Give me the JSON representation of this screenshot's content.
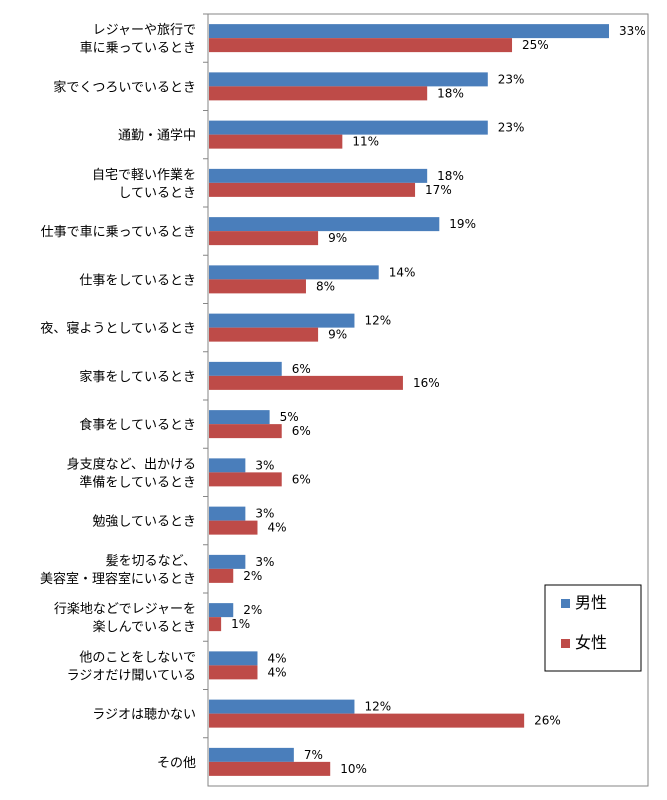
{
  "chart_data": {
    "type": "bar",
    "orientation": "horizontal",
    "categories": [
      [
        "レジャーや旅行で",
        "車に乗っているとき"
      ],
      [
        "家でくつろいでいるとき"
      ],
      [
        "通勤・通学中"
      ],
      [
        "自宅で軽い作業を",
        "しているとき"
      ],
      [
        "仕事で車に乗っているとき"
      ],
      [
        "仕事をしているとき"
      ],
      [
        "夜、寝ようとしているとき"
      ],
      [
        "家事をしているとき"
      ],
      [
        "食事をしているとき"
      ],
      [
        "身支度など、出かける",
        "準備をしているとき"
      ],
      [
        "勉強しているとき"
      ],
      [
        "髪を切るなど、",
        "美容室・理容室にいるとき"
      ],
      [
        "行楽地などでレジャーを",
        "楽しんでいるとき"
      ],
      [
        "他のことをしないで",
        "ラジオだけ聞いている"
      ],
      [
        "ラジオは聴かない"
      ],
      [
        "その他"
      ]
    ],
    "series": [
      {
        "name": "男性",
        "color": "#4a7ebb",
        "values": [
          33,
          23,
          23,
          18,
          19,
          14,
          12,
          6,
          5,
          3,
          3,
          3,
          2,
          4,
          12,
          7
        ],
        "labels": [
          "33%",
          "23%",
          "23%",
          "18%",
          "19%",
          "14%",
          "12%",
          "6%",
          "5%",
          "3%",
          "3%",
          "3%",
          "2%",
          "4%",
          "12%",
          "7%"
        ]
      },
      {
        "name": "女性",
        "color": "#be4b48",
        "values": [
          25,
          18,
          11,
          17,
          9,
          8,
          9,
          16,
          6,
          6,
          4,
          2,
          1,
          4,
          26,
          10
        ],
        "labels": [
          "25%",
          "18%",
          "11%",
          "17%",
          "9%",
          "8%",
          "9%",
          "16%",
          "6%",
          "6%",
          "4%",
          "2%",
          "1%",
          "4%",
          "26%",
          "10%"
        ]
      }
    ],
    "unit": "%",
    "xlim": [
      0,
      33
    ],
    "grid": false,
    "legend": "right"
  }
}
